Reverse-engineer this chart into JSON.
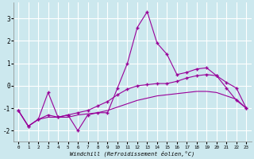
{
  "bg_color": "#cce8ee",
  "grid_color": "#ffffff",
  "line_color": "#990099",
  "xlabel": "Windchill (Refroidissement éolien,°C)",
  "xlim": [
    -0.5,
    23.5
  ],
  "ylim": [
    -2.5,
    3.7
  ],
  "yticks": [
    -2,
    -1,
    0,
    1,
    2,
    3
  ],
  "xticks": [
    0,
    1,
    2,
    3,
    4,
    5,
    6,
    7,
    8,
    9,
    10,
    11,
    12,
    13,
    14,
    15,
    16,
    17,
    18,
    19,
    20,
    21,
    22,
    23
  ],
  "series_jagged_x": [
    0,
    1,
    2,
    3,
    4,
    5,
    6,
    7,
    8,
    9,
    10,
    11,
    12,
    13,
    14,
    15,
    16,
    17,
    18,
    19,
    20,
    21,
    22,
    23
  ],
  "series_jagged_y": [
    -1.1,
    -1.8,
    -1.5,
    -0.3,
    -1.4,
    -1.3,
    -2.0,
    -1.3,
    -1.2,
    -1.2,
    -0.1,
    1.0,
    2.6,
    3.3,
    1.9,
    1.4,
    0.5,
    0.6,
    0.75,
    0.8,
    0.45,
    -0.1,
    -0.65,
    -1.0
  ],
  "series_upper_x": [
    0,
    1,
    2,
    3,
    4,
    5,
    6,
    7,
    8,
    9,
    10,
    11,
    12,
    13,
    14,
    15,
    16,
    17,
    18,
    19,
    20,
    21,
    22,
    23
  ],
  "series_upper_y": [
    -1.1,
    -1.8,
    -1.5,
    -1.3,
    -1.4,
    -1.3,
    -1.2,
    -1.1,
    -0.9,
    -0.7,
    -0.4,
    -0.15,
    0.0,
    0.05,
    0.1,
    0.1,
    0.2,
    0.35,
    0.45,
    0.5,
    0.45,
    0.15,
    -0.1,
    -1.0
  ],
  "series_lower_x": [
    0,
    1,
    2,
    3,
    4,
    5,
    6,
    7,
    8,
    9,
    10,
    11,
    12,
    13,
    14,
    15,
    16,
    17,
    18,
    19,
    20,
    21,
    22,
    23
  ],
  "series_lower_y": [
    -1.1,
    -1.8,
    -1.5,
    -1.4,
    -1.4,
    -1.4,
    -1.3,
    -1.25,
    -1.2,
    -1.1,
    -0.95,
    -0.8,
    -0.65,
    -0.55,
    -0.45,
    -0.4,
    -0.35,
    -0.3,
    -0.25,
    -0.25,
    -0.3,
    -0.45,
    -0.6,
    -1.0
  ],
  "series_line_x": [
    0,
    3,
    6,
    10,
    11,
    12,
    13,
    14,
    15,
    16,
    17,
    18,
    19,
    20,
    21,
    22,
    23
  ],
  "series_line_y": [
    -1.1,
    -0.3,
    -2.0,
    -0.1,
    1.0,
    2.6,
    3.3,
    1.9,
    1.4,
    0.5,
    0.6,
    0.75,
    0.8,
    0.45,
    -0.1,
    -0.65,
    -1.0
  ]
}
